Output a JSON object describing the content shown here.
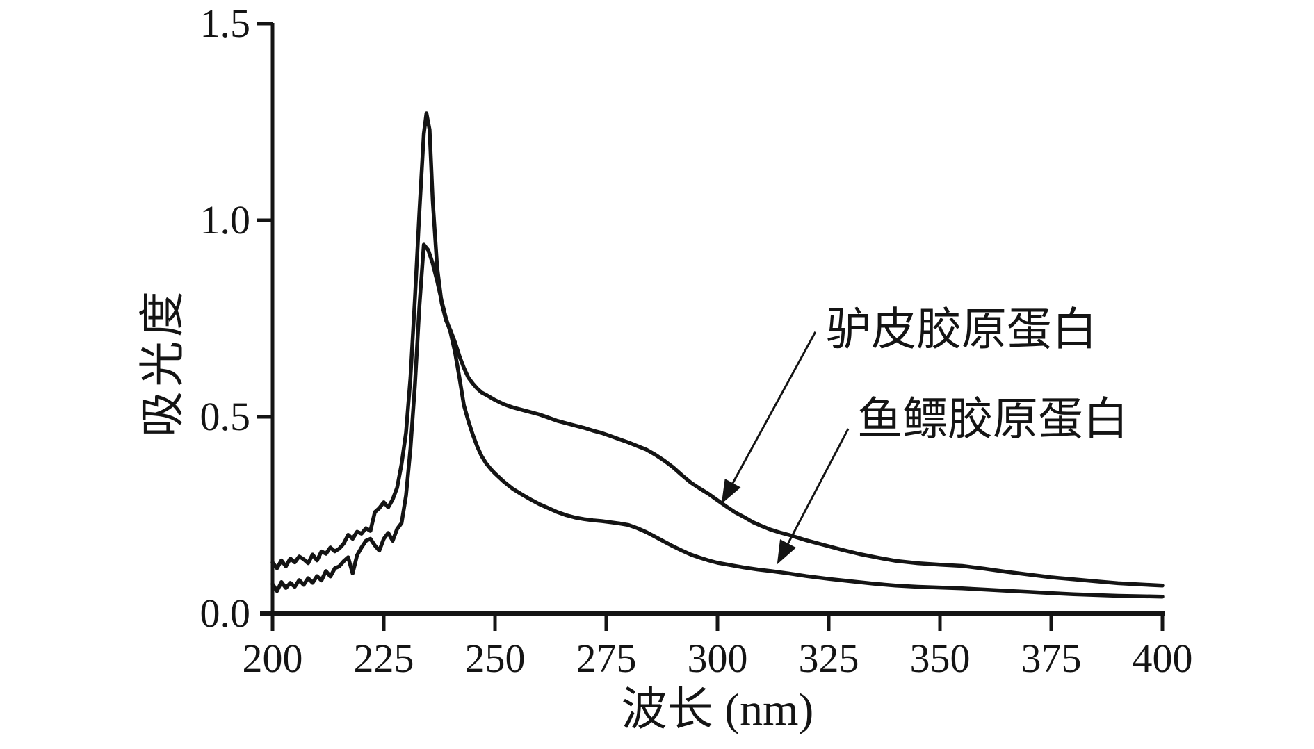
{
  "chart_data": {
    "type": "line",
    "title": "",
    "xlabel": "波长 (nm)",
    "ylabel": "吸光度",
    "xlim": [
      200,
      400
    ],
    "ylim": [
      0,
      1.5
    ],
    "x_ticks": [
      200,
      225,
      250,
      275,
      300,
      325,
      350,
      375,
      400
    ],
    "y_ticks": [
      0.0,
      0.5,
      1.0,
      1.5
    ],
    "y_tick_labels": [
      "0.0",
      "0.5",
      "1.0",
      "1.5"
    ],
    "grid": false,
    "ink_color": "#141414",
    "series": [
      {
        "name": "驴皮胶原蛋白",
        "peak": {
          "wavelength_nm": 234.6,
          "absorbance": 1.27
        },
        "points": [
          [
            200,
            0.13
          ],
          [
            201,
            0.115
          ],
          [
            202,
            0.135
          ],
          [
            203,
            0.12
          ],
          [
            204,
            0.14
          ],
          [
            205,
            0.13
          ],
          [
            206,
            0.145
          ],
          [
            207,
            0.138
          ],
          [
            208,
            0.128
          ],
          [
            209,
            0.15
          ],
          [
            210,
            0.135
          ],
          [
            211,
            0.158
          ],
          [
            212,
            0.152
          ],
          [
            213,
            0.168
          ],
          [
            214,
            0.158
          ],
          [
            215,
            0.165
          ],
          [
            216,
            0.178
          ],
          [
            217,
            0.2
          ],
          [
            218,
            0.19
          ],
          [
            219,
            0.208
          ],
          [
            220,
            0.203
          ],
          [
            221,
            0.217
          ],
          [
            222,
            0.21
          ],
          [
            223,
            0.258
          ],
          [
            224,
            0.268
          ],
          [
            225,
            0.283
          ],
          [
            226,
            0.27
          ],
          [
            227,
            0.29
          ],
          [
            228,
            0.32
          ],
          [
            229,
            0.38
          ],
          [
            230,
            0.46
          ],
          [
            231,
            0.6
          ],
          [
            232,
            0.8
          ],
          [
            233,
            1.02
          ],
          [
            234,
            1.22
          ],
          [
            234.6,
            1.272
          ],
          [
            235.3,
            1.23
          ],
          [
            236,
            1.05
          ],
          [
            237,
            0.88
          ],
          [
            238,
            0.79
          ],
          [
            239,
            0.745
          ],
          [
            240,
            0.72
          ],
          [
            241,
            0.69
          ],
          [
            242,
            0.655
          ],
          [
            243,
            0.625
          ],
          [
            244,
            0.6
          ],
          [
            245,
            0.585
          ],
          [
            246,
            0.572
          ],
          [
            247,
            0.562
          ],
          [
            248,
            0.556
          ],
          [
            250,
            0.543
          ],
          [
            252,
            0.532
          ],
          [
            254,
            0.524
          ],
          [
            256,
            0.518
          ],
          [
            258,
            0.512
          ],
          [
            260,
            0.506
          ],
          [
            262,
            0.498
          ],
          [
            264,
            0.49
          ],
          [
            266,
            0.484
          ],
          [
            268,
            0.478
          ],
          [
            270,
            0.472
          ],
          [
            272,
            0.465
          ],
          [
            274,
            0.459
          ],
          [
            276,
            0.451
          ],
          [
            278,
            0.443
          ],
          [
            280,
            0.435
          ],
          [
            282,
            0.426
          ],
          [
            284,
            0.417
          ],
          [
            286,
            0.404
          ],
          [
            288,
            0.389
          ],
          [
            290,
            0.372
          ],
          [
            292,
            0.352
          ],
          [
            294,
            0.333
          ],
          [
            296,
            0.318
          ],
          [
            298,
            0.304
          ],
          [
            300,
            0.288
          ],
          [
            302,
            0.272
          ],
          [
            304,
            0.257
          ],
          [
            306,
            0.245
          ],
          [
            308,
            0.232
          ],
          [
            310,
            0.222
          ],
          [
            312,
            0.213
          ],
          [
            314,
            0.206
          ],
          [
            316,
            0.2
          ],
          [
            318,
            0.193
          ],
          [
            320,
            0.186
          ],
          [
            324,
            0.174
          ],
          [
            328,
            0.162
          ],
          [
            332,
            0.151
          ],
          [
            336,
            0.142
          ],
          [
            340,
            0.134
          ],
          [
            345,
            0.128
          ],
          [
            350,
            0.124
          ],
          [
            355,
            0.121
          ],
          [
            360,
            0.114
          ],
          [
            365,
            0.106
          ],
          [
            370,
            0.099
          ],
          [
            375,
            0.092
          ],
          [
            380,
            0.087
          ],
          [
            385,
            0.082
          ],
          [
            390,
            0.077
          ],
          [
            395,
            0.074
          ],
          [
            400,
            0.071
          ]
        ]
      },
      {
        "name": "鱼鳔胶原蛋白",
        "peak": {
          "wavelength_nm": 234,
          "absorbance": 0.94
        },
        "points": [
          [
            200,
            0.075
          ],
          [
            201,
            0.057
          ],
          [
            202,
            0.08
          ],
          [
            203,
            0.065
          ],
          [
            204,
            0.078
          ],
          [
            205,
            0.068
          ],
          [
            206,
            0.085
          ],
          [
            207,
            0.073
          ],
          [
            208,
            0.09
          ],
          [
            209,
            0.078
          ],
          [
            210,
            0.095
          ],
          [
            211,
            0.084
          ],
          [
            212,
            0.108
          ],
          [
            213,
            0.094
          ],
          [
            214,
            0.115
          ],
          [
            215,
            0.12
          ],
          [
            216,
            0.133
          ],
          [
            217,
            0.143
          ],
          [
            218,
            0.102
          ],
          [
            219,
            0.148
          ],
          [
            220,
            0.168
          ],
          [
            221,
            0.185
          ],
          [
            222,
            0.19
          ],
          [
            223,
            0.173
          ],
          [
            224,
            0.16
          ],
          [
            225,
            0.19
          ],
          [
            226,
            0.205
          ],
          [
            227,
            0.185
          ],
          [
            228,
            0.215
          ],
          [
            229,
            0.23
          ],
          [
            230,
            0.3
          ],
          [
            231,
            0.42
          ],
          [
            232,
            0.58
          ],
          [
            233,
            0.78
          ],
          [
            234,
            0.938
          ],
          [
            235,
            0.924
          ],
          [
            236,
            0.89
          ],
          [
            237,
            0.845
          ],
          [
            238,
            0.795
          ],
          [
            239,
            0.75
          ],
          [
            240,
            0.715
          ],
          [
            241,
            0.665
          ],
          [
            242,
            0.6
          ],
          [
            243,
            0.53
          ],
          [
            244,
            0.49
          ],
          [
            245,
            0.455
          ],
          [
            246,
            0.425
          ],
          [
            247,
            0.4
          ],
          [
            248,
            0.382
          ],
          [
            249,
            0.368
          ],
          [
            250,
            0.356
          ],
          [
            252,
            0.335
          ],
          [
            254,
            0.317
          ],
          [
            256,
            0.303
          ],
          [
            258,
            0.29
          ],
          [
            260,
            0.278
          ],
          [
            262,
            0.268
          ],
          [
            264,
            0.258
          ],
          [
            266,
            0.25
          ],
          [
            268,
            0.244
          ],
          [
            270,
            0.24
          ],
          [
            272,
            0.237
          ],
          [
            274,
            0.235
          ],
          [
            276,
            0.232
          ],
          [
            278,
            0.229
          ],
          [
            280,
            0.225
          ],
          [
            282,
            0.217
          ],
          [
            284,
            0.207
          ],
          [
            286,
            0.195
          ],
          [
            288,
            0.183
          ],
          [
            290,
            0.171
          ],
          [
            292,
            0.16
          ],
          [
            294,
            0.15
          ],
          [
            296,
            0.142
          ],
          [
            298,
            0.135
          ],
          [
            300,
            0.129
          ],
          [
            303,
            0.123
          ],
          [
            306,
            0.117
          ],
          [
            309,
            0.112
          ],
          [
            312,
            0.108
          ],
          [
            316,
            0.102
          ],
          [
            320,
            0.095
          ],
          [
            325,
            0.088
          ],
          [
            330,
            0.082
          ],
          [
            335,
            0.076
          ],
          [
            340,
            0.071
          ],
          [
            345,
            0.068
          ],
          [
            350,
            0.066
          ],
          [
            355,
            0.064
          ],
          [
            360,
            0.061
          ],
          [
            365,
            0.058
          ],
          [
            370,
            0.055
          ],
          [
            375,
            0.052
          ],
          [
            380,
            0.049
          ],
          [
            385,
            0.047
          ],
          [
            390,
            0.045
          ],
          [
            395,
            0.044
          ],
          [
            400,
            0.043
          ]
        ]
      }
    ],
    "annotations": [
      {
        "text": "驴皮胶原蛋白",
        "arrow_from": [
          322.0,
          0.716
        ],
        "arrow_to": [
          300.9,
          0.279
        ]
      },
      {
        "text": "鱼鳔胶原蛋白",
        "arrow_from": [
          329.4,
          0.47
        ],
        "arrow_to": [
          313.4,
          0.125
        ]
      }
    ],
    "legend_position": "arrow-annotations inside plot, right side"
  }
}
